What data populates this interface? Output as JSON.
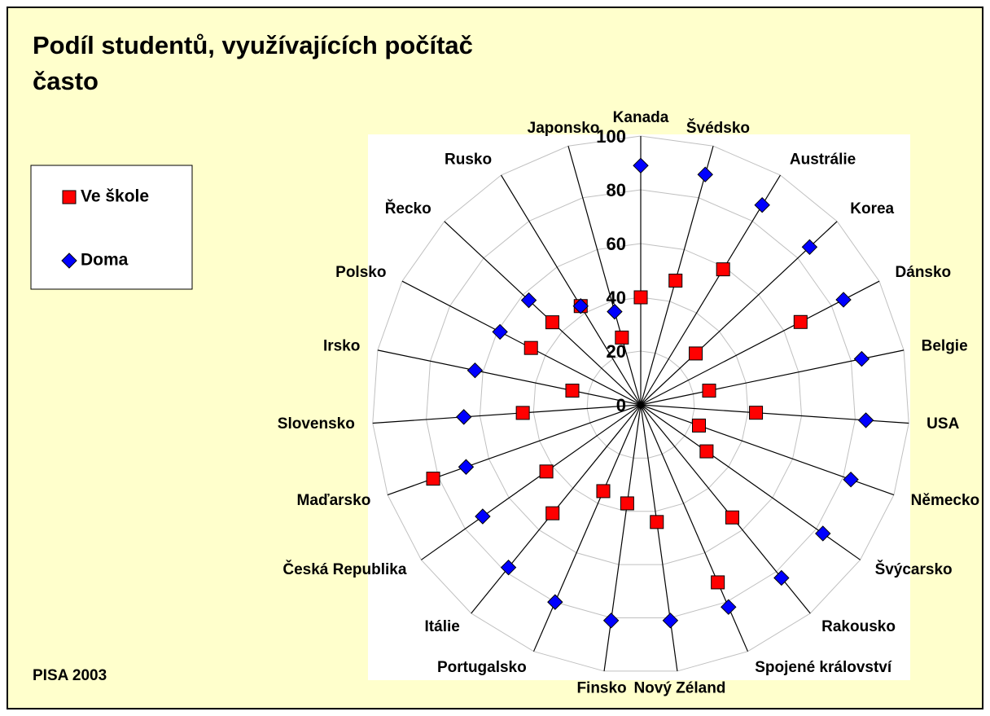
{
  "chart_data": {
    "type": "radar",
    "title": "Podíl studentů, využívajících počítač často",
    "note": "PISA 2003",
    "categories": [
      "Kanada",
      "Švédsko",
      "Austrálie",
      "Korea",
      "Dánsko",
      "Belgie",
      "USA",
      "Německo",
      "Švýcarsko",
      "Rakousko",
      "Spojené království",
      "Nový Zéland",
      "Finsko",
      "Portugalsko",
      "Itálie",
      "Česká Republika",
      "Maďarsko",
      "Slovensko",
      "Irsko",
      "Polsko",
      "Řecko",
      "Rusko",
      "Japonsko"
    ],
    "series": [
      {
        "name": "Ve škole",
        "color": "#ff0000",
        "marker": "square",
        "values": [
          40,
          48,
          59,
          28,
          67,
          26,
          43,
          23,
          30,
          54,
          72,
          44,
          37,
          35,
          52,
          43,
          82,
          44,
          26,
          46,
          45,
          43,
          26
        ]
      },
      {
        "name": "Doma",
        "color": "#0000ff",
        "marker": "diamond",
        "values": [
          89,
          89,
          87,
          86,
          85,
          84,
          84,
          83,
          83,
          83,
          82,
          81,
          81,
          80,
          78,
          72,
          69,
          66,
          63,
          59,
          57,
          43,
          36
        ]
      }
    ],
    "rlim": [
      0,
      100
    ],
    "rticks": [
      0,
      20,
      40,
      60,
      80,
      100
    ],
    "grid": true,
    "legend": "left"
  }
}
